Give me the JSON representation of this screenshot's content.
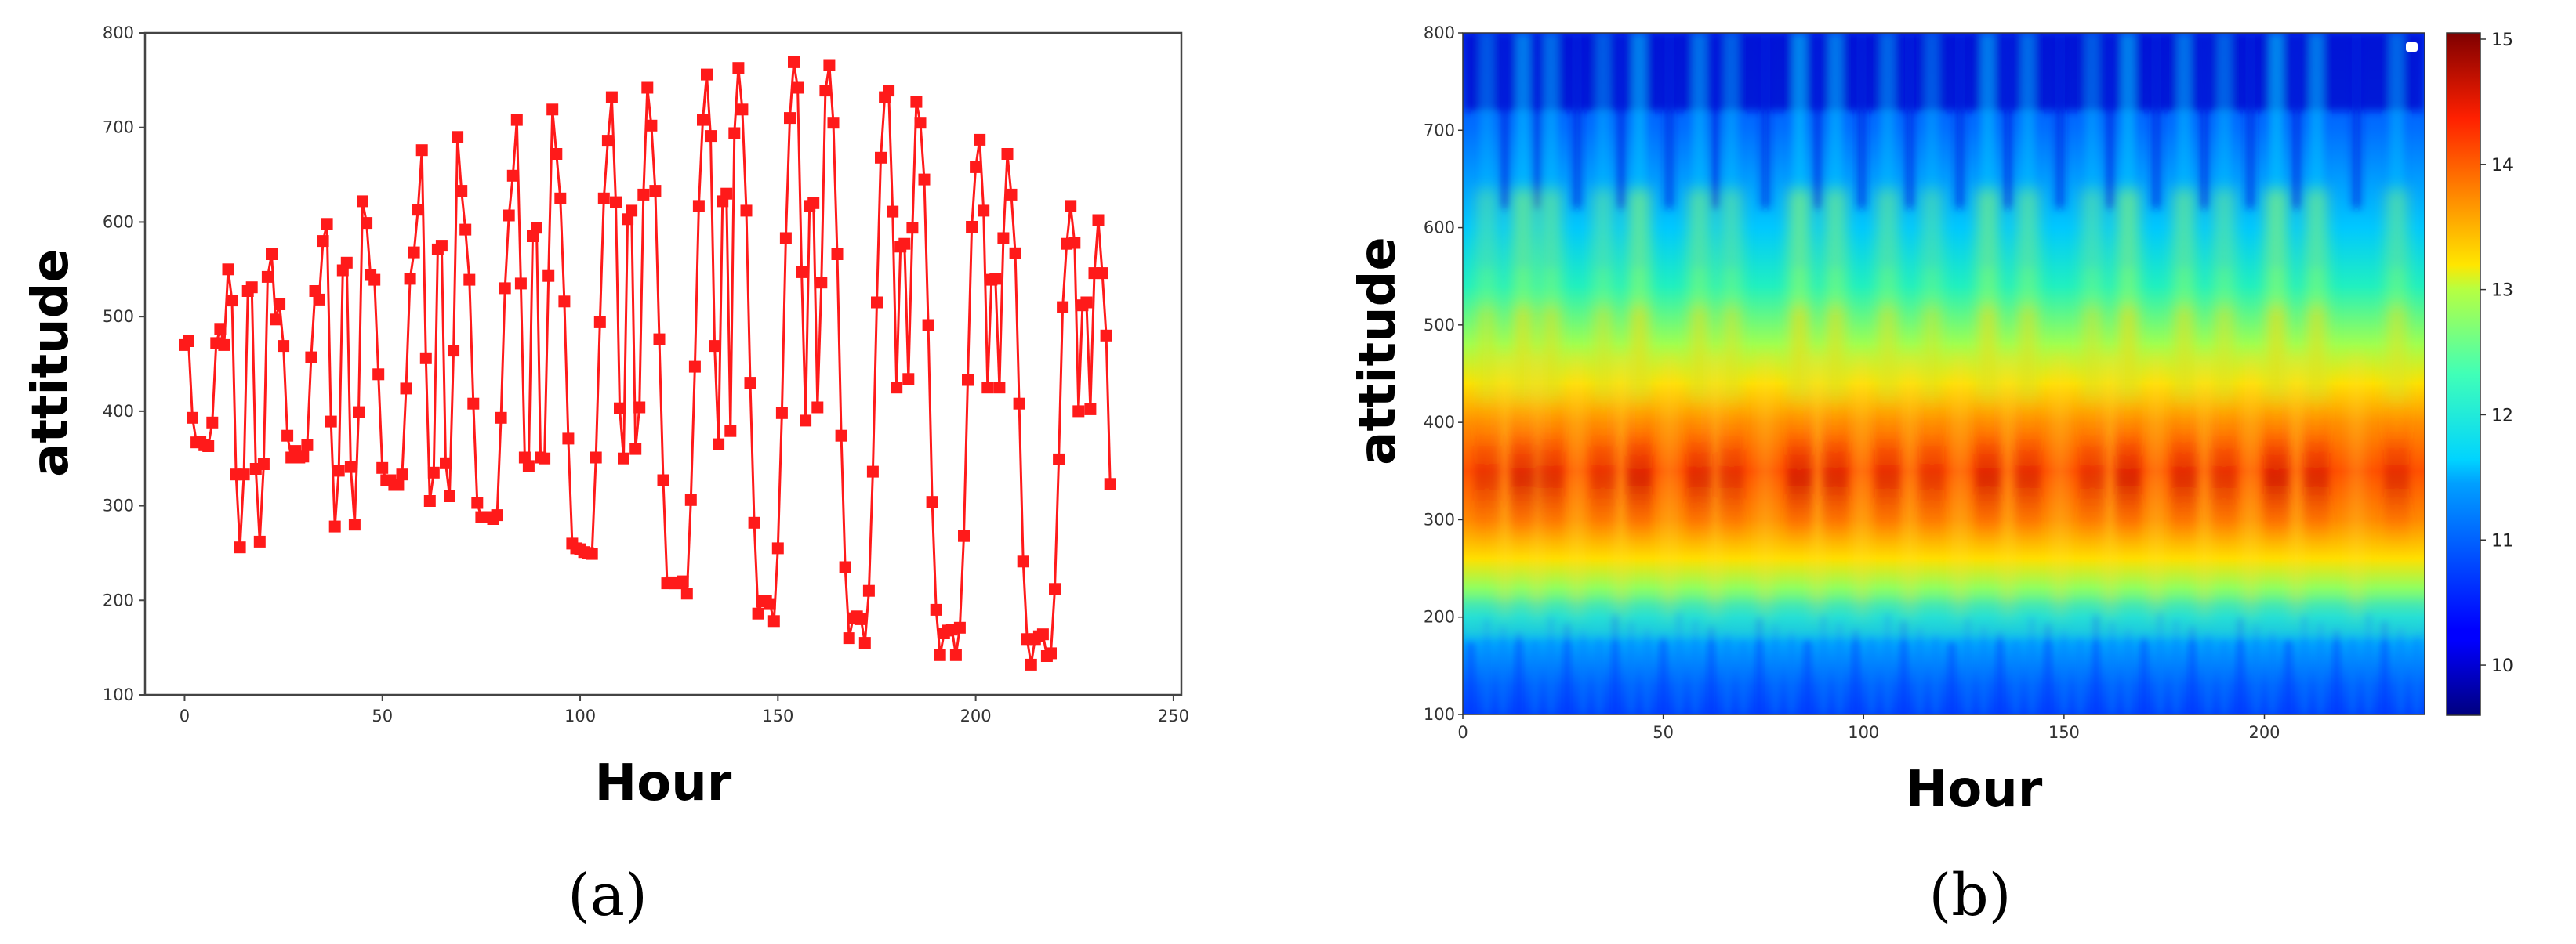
{
  "colors": {
    "series": "#ff1a1a",
    "frame": "#444444"
  },
  "chart_data": [
    {
      "type": "line",
      "panel_label": "(a)",
      "xlabel": "Hour",
      "ylabel": "attitude",
      "xlim": [
        -10,
        252
      ],
      "ylim": [
        100,
        800
      ],
      "xticks": [
        0,
        50,
        100,
        150,
        200,
        250
      ],
      "yticks": [
        100,
        200,
        300,
        400,
        500,
        600,
        700,
        800
      ],
      "marker": "square",
      "grid": false,
      "series": [
        {
          "name": "attitude",
          "values": [
            470,
            474,
            393,
            367,
            368,
            364,
            363,
            388,
            472,
            487,
            470,
            550,
            517,
            333,
            256,
            333,
            527,
            531,
            339,
            262,
            344,
            542,
            566,
            497,
            513,
            469,
            374,
            351,
            358,
            351,
            352,
            364,
            457,
            527,
            518,
            580,
            598,
            389,
            278,
            337,
            549,
            557,
            341,
            280,
            399,
            622,
            599,
            544,
            539,
            439,
            340,
            327,
            327,
            322,
            322,
            333,
            424,
            540,
            568,
            613,
            676,
            456,
            305,
            335,
            571,
            575,
            345,
            310,
            464,
            690,
            633,
            592,
            539,
            408,
            303,
            288,
            288,
            288,
            286,
            290,
            393,
            530,
            607,
            649,
            708,
            535,
            351,
            342,
            585,
            594,
            351,
            350,
            543,
            719,
            672,
            625,
            516,
            371,
            260,
            255,
            254,
            251,
            250,
            249,
            351,
            494,
            625,
            686,
            732,
            621,
            403,
            350,
            603,
            612,
            360,
            404,
            629,
            742,
            702,
            633,
            476,
            327,
            218,
            219,
            218,
            218,
            220,
            207,
            306,
            447,
            617,
            708,
            756,
            691,
            469,
            365,
            622,
            630,
            379,
            694,
            763,
            719,
            612,
            430,
            282,
            186,
            199,
            199,
            196,
            178,
            255,
            398,
            583,
            710,
            769,
            742,
            547,
            390,
            617,
            620,
            404,
            536,
            739,
            766,
            705,
            566,
            374,
            235,
            160,
            181,
            183,
            180,
            155,
            210,
            336,
            515,
            668,
            732,
            739,
            611,
            425,
            574,
            577,
            434,
            594,
            727,
            705,
            645,
            491,
            304,
            190,
            142,
            165,
            168,
            169,
            142,
            171,
            268,
            433,
            595,
            658,
            687,
            612,
            425,
            539,
            540,
            425,
            583,
            672,
            629,
            567,
            408,
            241,
            159,
            132,
            159,
            162,
            164,
            141,
            144,
            212,
            349,
            510,
            577,
            617,
            578,
            400,
            512,
            515,
            402,
            546,
            602,
            546,
            480,
            323
          ]
        }
      ]
    },
    {
      "type": "heatmap",
      "panel_label": "(b)",
      "xlabel": "Hour",
      "ylabel": "attitude",
      "xlim": [
        0,
        240
      ],
      "ylim": [
        100,
        800
      ],
      "xticks": [
        0,
        50,
        100,
        150,
        200
      ],
      "yticks": [
        100,
        200,
        300,
        400,
        500,
        600,
        700,
        800
      ],
      "colorscale": "jet",
      "colorbar": {
        "min": 9.6,
        "max": 15.05,
        "ticks": [
          10,
          11,
          12,
          13,
          14,
          15
        ]
      },
      "grid": false
    }
  ]
}
